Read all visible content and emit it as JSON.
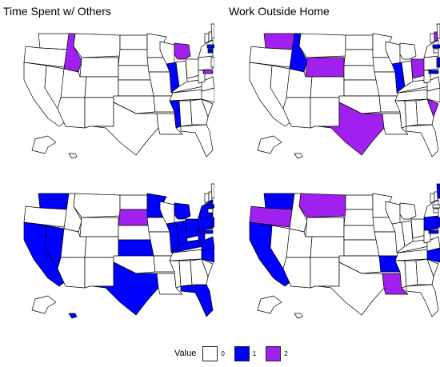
{
  "titles": {
    "top_left": "Time Spent w/ Others",
    "top_right": "Work Outside Home"
  },
  "legend": {
    "title": "Value",
    "items": [
      {
        "label": "0",
        "color": "#ffffff"
      },
      {
        "label": "1",
        "color": "#0000ff"
      },
      {
        "label": "2",
        "color": "#a020f0"
      }
    ]
  },
  "maps": [
    {
      "name": "time-spent-top-left",
      "values": {
        "ID": 2,
        "MI": 2,
        "MD": 2,
        "IL": 1,
        "MS": 1,
        "MA": 1,
        "CT": 1
      }
    },
    {
      "name": "work-outside-home-top-right",
      "values": {
        "WA": 2,
        "ID": 1,
        "WY": 2,
        "IL": 1,
        "OH": 2,
        "TX": 2,
        "SC": 2,
        "NH": 2,
        "NJ": 1,
        "MD": 1,
        "MA": 1
      }
    },
    {
      "name": "bottom-left",
      "values": {
        "WA": 1,
        "NV": 1,
        "CA": 1,
        "SD": 2,
        "KS": 1,
        "TX": 1,
        "MN": 1,
        "IL": 1,
        "MI": 1,
        "IN": 1,
        "OH": 1,
        "KY": 1,
        "WV": 1,
        "VA": 1,
        "NC": 1,
        "PA": 1,
        "NY": 1,
        "FL": 1,
        "HI": 1,
        "NJ": 1,
        "MD": 1,
        "MA": 1
      }
    },
    {
      "name": "bottom-right",
      "values": {
        "WA": 1,
        "OR": 2,
        "MT": 2,
        "CA": 1,
        "AR": 1,
        "LA": 2,
        "NC": 1,
        "PA": 1,
        "NJ": 1,
        "MD": 1,
        "ME": 1
      }
    }
  ]
}
